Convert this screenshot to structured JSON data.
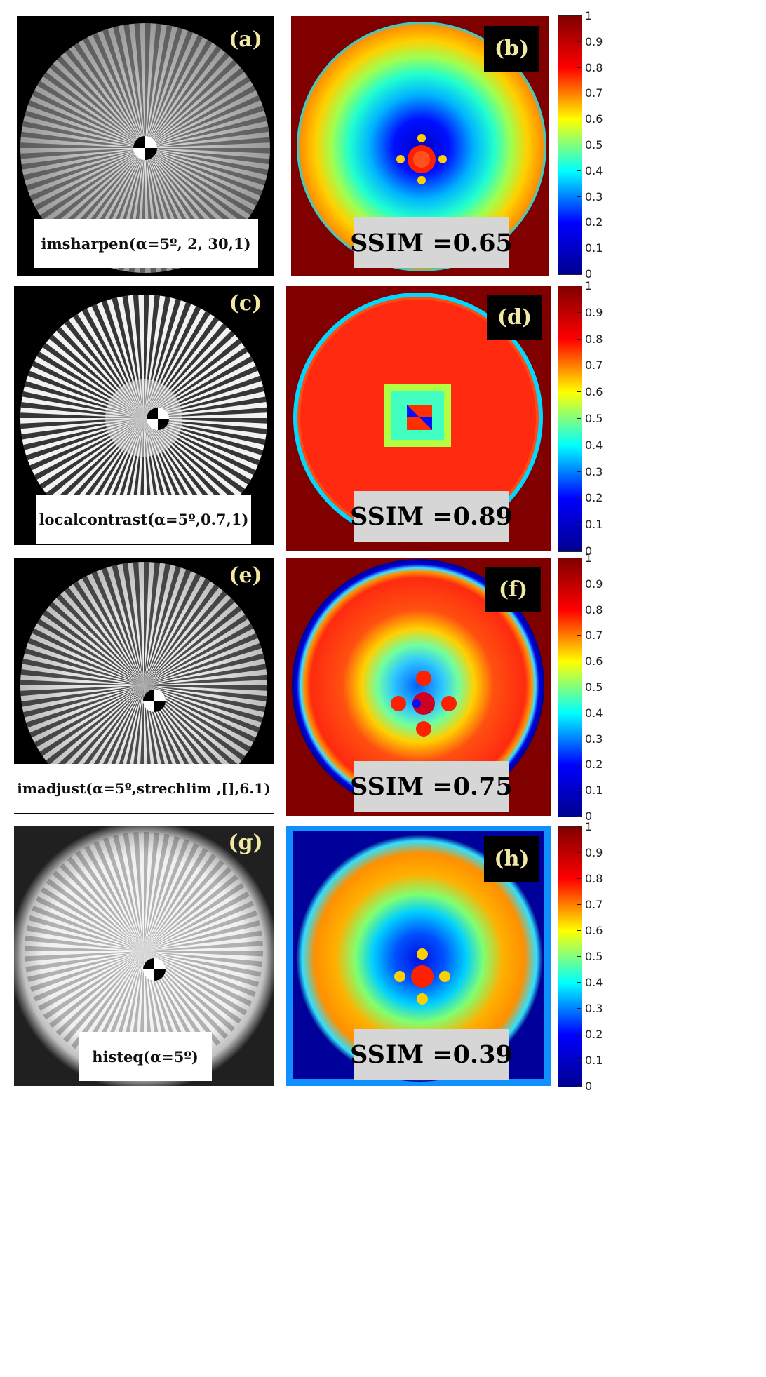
{
  "panels": [
    {
      "letter": "(a)",
      "caption": "imsharpen(α=5º, 2, 30,1)"
    },
    {
      "letter": "(b)",
      "ssim": "SSIM =0.65"
    },
    {
      "letter": "(c)",
      "caption": "localcontrast(α=5º,0.7,1)"
    },
    {
      "letter": "(d)",
      "ssim": "SSIM =0.89"
    },
    {
      "letter": "(e)",
      "caption": "imadjust(α=5º,strechlim ,[],6.1)"
    },
    {
      "letter": "(f)",
      "ssim": "SSIM =0.75"
    },
    {
      "letter": "(g)",
      "caption": "histeq(α=5º)"
    },
    {
      "letter": "(h)",
      "ssim": "SSIM =0.39"
    }
  ],
  "colorbar": {
    "ticks": [
      "1",
      "0.9",
      "0.8",
      "0.7",
      "0.6",
      "0.5",
      "0.4",
      "0.3",
      "0.2",
      "0.1",
      "0"
    ],
    "colormap": [
      "#00008f",
      "#0000ff",
      "#00ffff",
      "#ffff00",
      "#ff0000",
      "#800000"
    ]
  }
}
